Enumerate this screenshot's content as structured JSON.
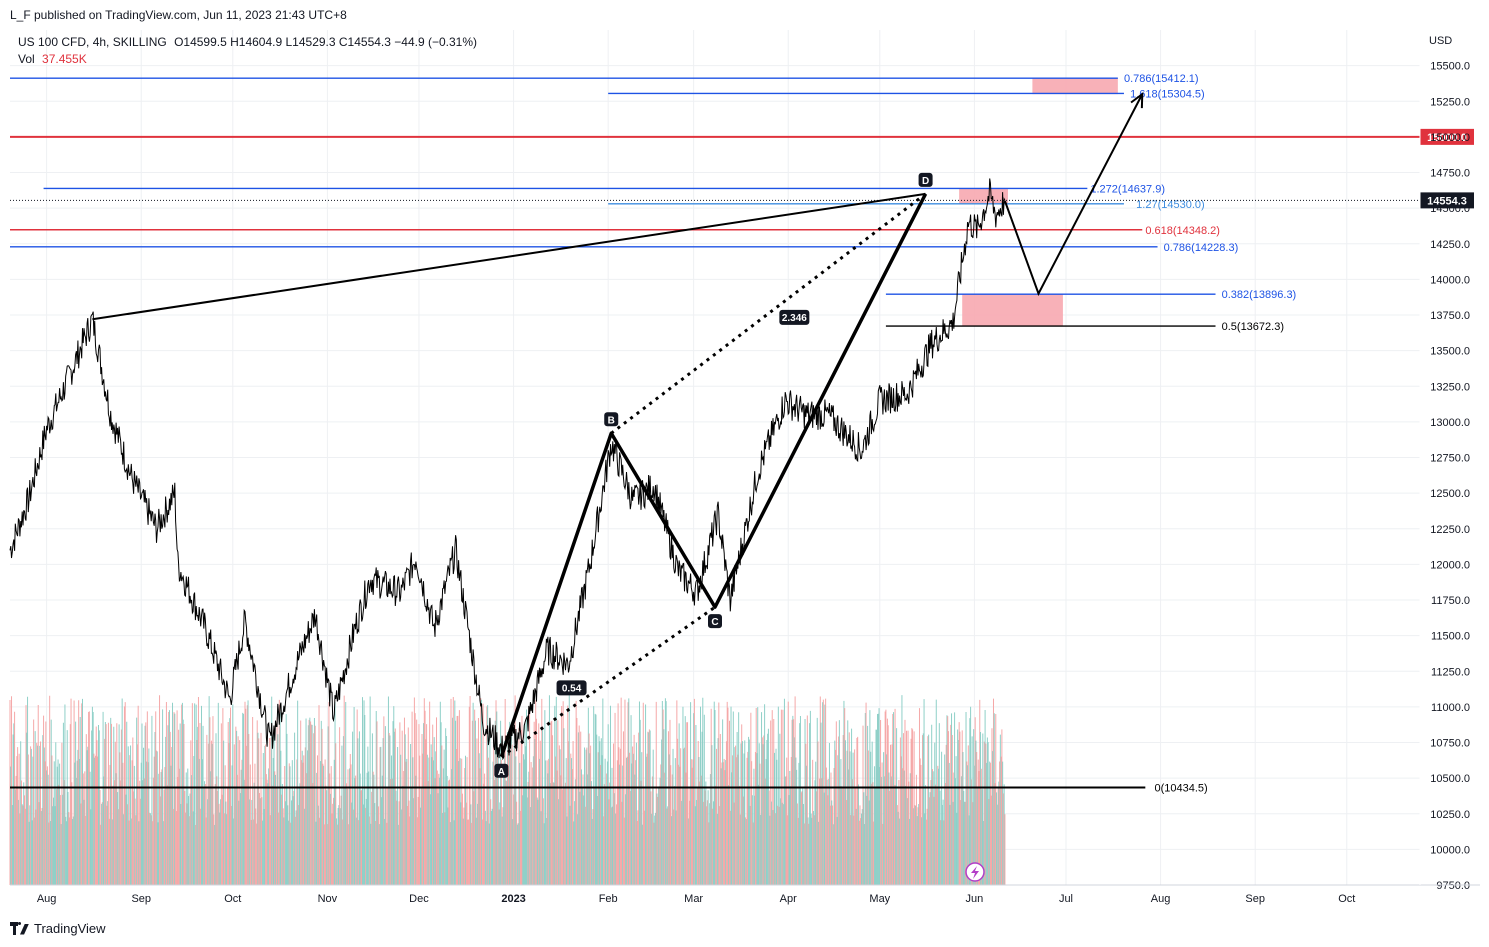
{
  "header": {
    "published_by": "L_F published on TradingView.com, Jun 11, 2023 21:43 UTC+8",
    "symbol_line": "US 100 CFD, 4h, SKILLING",
    "ohlc": "O14599.5  H14604.9  L14529.3  C14554.3  −44.9 (−0.31%)",
    "vol_label": "Vol",
    "vol_value": "37.455K"
  },
  "branding": {
    "name": "TradingView"
  },
  "colors": {
    "blue_level": "#1e53e5",
    "light_blue_level": "#3d8de0",
    "red_level": "#e0323d",
    "black": "#000000",
    "zone_pink": "#f7a8b0",
    "vol_green": "#8fd0c8",
    "vol_red": "#f5a8a8",
    "grid": "#eef0f3"
  },
  "chart_data": {
    "type": "line",
    "title": "US 100 CFD, 4h, SKILLING",
    "currency": "USD",
    "ylim": [
      9750,
      15750
    ],
    "y_ticks": [
      9750,
      10000,
      10250,
      10500,
      10750,
      11000,
      11250,
      11500,
      11750,
      12000,
      12250,
      12500,
      12750,
      13000,
      13250,
      13500,
      13750,
      14000,
      14250,
      14500,
      14750,
      15000,
      15250,
      15500
    ],
    "y_tick_labels": [
      "9750.0",
      "10000.0",
      "10250.0",
      "10500.0",
      "10750.0",
      "11000.0",
      "11250.0",
      "11500.0",
      "11750.0",
      "12000.0",
      "12250.0",
      "12500.0",
      "12750.0",
      "13000.0",
      "13250.0",
      "13500.0",
      "13750.0",
      "14000.0",
      "14250.0",
      "14500.0",
      "14750.0",
      "15000.0",
      "15250.0",
      "15500.0"
    ],
    "x_ticks": [
      "Aug",
      "Sep",
      "Oct",
      "Nov",
      "Dec",
      "2023",
      "Feb",
      "Mar",
      "Apr",
      "May",
      "Jun",
      "Jul",
      "Aug",
      "Sep",
      "Oct"
    ],
    "xlim": [
      "2022-07-20",
      "2023-10-25"
    ],
    "x_tick_dates": [
      "2022-08-01",
      "2022-09-01",
      "2022-10-01",
      "2022-11-01",
      "2022-12-01",
      "2023-01-01",
      "2023-02-01",
      "2023-03-01",
      "2023-04-01",
      "2023-05-01",
      "2023-06-01",
      "2023-07-01",
      "2023-08-01",
      "2023-09-01",
      "2023-10-01"
    ],
    "price_series": [
      [
        "2022-07-20",
        12100
      ],
      [
        "2022-07-26",
        12450
      ],
      [
        "2022-08-01",
        12950
      ],
      [
        "2022-08-08",
        13300
      ],
      [
        "2022-08-16",
        13720
      ],
      [
        "2022-08-22",
        13050
      ],
      [
        "2022-08-29",
        12600
      ],
      [
        "2022-09-06",
        12250
      ],
      [
        "2022-09-12",
        12500
      ],
      [
        "2022-09-13",
        12000
      ],
      [
        "2022-09-22",
        11550
      ],
      [
        "2022-09-30",
        11050
      ],
      [
        "2022-10-05",
        11600
      ],
      [
        "2022-10-13",
        10750
      ],
      [
        "2022-10-21",
        11250
      ],
      [
        "2022-10-28",
        11650
      ],
      [
        "2022-11-03",
        10950
      ],
      [
        "2022-11-10",
        11550
      ],
      [
        "2022-11-15",
        11900
      ],
      [
        "2022-11-25",
        11800
      ],
      [
        "2022-11-30",
        12050
      ],
      [
        "2022-12-06",
        11550
      ],
      [
        "2022-12-13",
        12100
      ],
      [
        "2022-12-22",
        10900
      ],
      [
        "2022-12-28",
        10700
      ],
      [
        "2023-01-05",
        10850
      ],
      [
        "2023-01-12",
        11400
      ],
      [
        "2023-01-19",
        11300
      ],
      [
        "2023-01-26",
        12000
      ],
      [
        "2023-02-02",
        12850
      ],
      [
        "2023-02-09",
        12450
      ],
      [
        "2023-02-16",
        12550
      ],
      [
        "2023-02-24",
        11950
      ],
      [
        "2023-03-02",
        11800
      ],
      [
        "2023-03-09",
        12350
      ],
      [
        "2023-03-13",
        11750
      ],
      [
        "2023-03-22",
        12650
      ],
      [
        "2023-03-31",
        13150
      ],
      [
        "2023-04-07",
        13050
      ],
      [
        "2023-04-14",
        13050
      ],
      [
        "2023-04-25",
        12800
      ],
      [
        "2023-05-01",
        13150
      ],
      [
        "2023-05-10",
        13200
      ],
      [
        "2023-05-18",
        13550
      ],
      [
        "2023-05-25",
        13700
      ],
      [
        "2023-05-30",
        14400
      ],
      [
        "2023-06-02",
        14350
      ],
      [
        "2023-06-06",
        14600
      ],
      [
        "2023-06-08",
        14450
      ],
      [
        "2023-06-11",
        14554.3
      ]
    ],
    "volume_label": "Vol",
    "last_price": 14554.3,
    "last_price_label": "14554.3",
    "key_level": 15000,
    "key_level_label": "15000.0",
    "harmonic_points": [
      {
        "label": "A",
        "x": "2022-12-28",
        "y": 10650
      },
      {
        "label": "B",
        "x": "2023-02-02",
        "y": 12920
      },
      {
        "label": "C",
        "x": "2023-03-08",
        "y": 11700
      },
      {
        "label": "D",
        "x": "2023-05-16",
        "y": 14600
      }
    ],
    "ratios": [
      {
        "text": "0.54",
        "x": "2023-01-20",
        "y": 11130
      },
      {
        "text": "2.346",
        "x": "2023-04-03",
        "y": 13730
      }
    ],
    "trendline": {
      "from": {
        "x": "2022-08-16",
        "y": 13720
      },
      "to": {
        "x": "2023-05-16",
        "y": 14600
      }
    },
    "projection_path": [
      {
        "x": "2023-06-11",
        "y": 14550
      },
      {
        "x": "2023-06-22",
        "y": 13900
      },
      {
        "x": "2023-07-26",
        "y": 15300
      }
    ],
    "levels": [
      {
        "label": "0.786(15412.1)",
        "value": 15412.1,
        "from": "2022-07-20",
        "to": "2023-07-18",
        "color": "blue",
        "label_x": "2023-07-20"
      },
      {
        "label": "1.618(15304.5)",
        "value": 15304.5,
        "from": "2023-02-01",
        "to": "2023-07-20",
        "color": "blue",
        "label_x": "2023-07-22"
      },
      {
        "label": "1.272(14637.9)",
        "value": 14637.9,
        "from": "2022-07-31",
        "to": "2023-07-08",
        "color": "blue",
        "label_x": "2023-07-09"
      },
      {
        "label": "1.27(14530.0)",
        "value": 14530.0,
        "from": "2023-02-01",
        "to": "2023-07-20",
        "color": "lightblue",
        "label_x": "2023-07-24"
      },
      {
        "label": "0.618(14348.2)",
        "value": 14348.2,
        "from": "2022-07-20",
        "to": "2023-07-26",
        "color": "red",
        "label_x": "2023-07-27"
      },
      {
        "label": "0.786(14228.3)",
        "value": 14228.3,
        "from": "2022-07-20",
        "to": "2023-07-31",
        "color": "blue",
        "label_x": "2023-08-02"
      },
      {
        "label": "0.382(13896.3)",
        "value": 13896.3,
        "from": "2023-05-03",
        "to": "2023-08-19",
        "color": "blue",
        "label_x": "2023-08-21"
      },
      {
        "label": "0.5(13672.3)",
        "value": 13672.3,
        "from": "2023-05-03",
        "to": "2023-08-19",
        "color": "black",
        "label_x": "2023-08-21"
      },
      {
        "label": "0(10434.5)",
        "value": 10434.5,
        "from": "2022-07-20",
        "to": "2023-07-27",
        "color": "black",
        "label_x": "2023-07-30"
      }
    ],
    "zones": [
      {
        "from": "2023-06-20",
        "to": "2023-07-18",
        "y1": 15300,
        "y2": 15412
      },
      {
        "from": "2023-05-27",
        "to": "2023-06-12",
        "y1": 14530,
        "y2": 14640
      },
      {
        "from": "2023-05-28",
        "to": "2023-06-30",
        "y1": 13672,
        "y2": 13896
      }
    ]
  }
}
